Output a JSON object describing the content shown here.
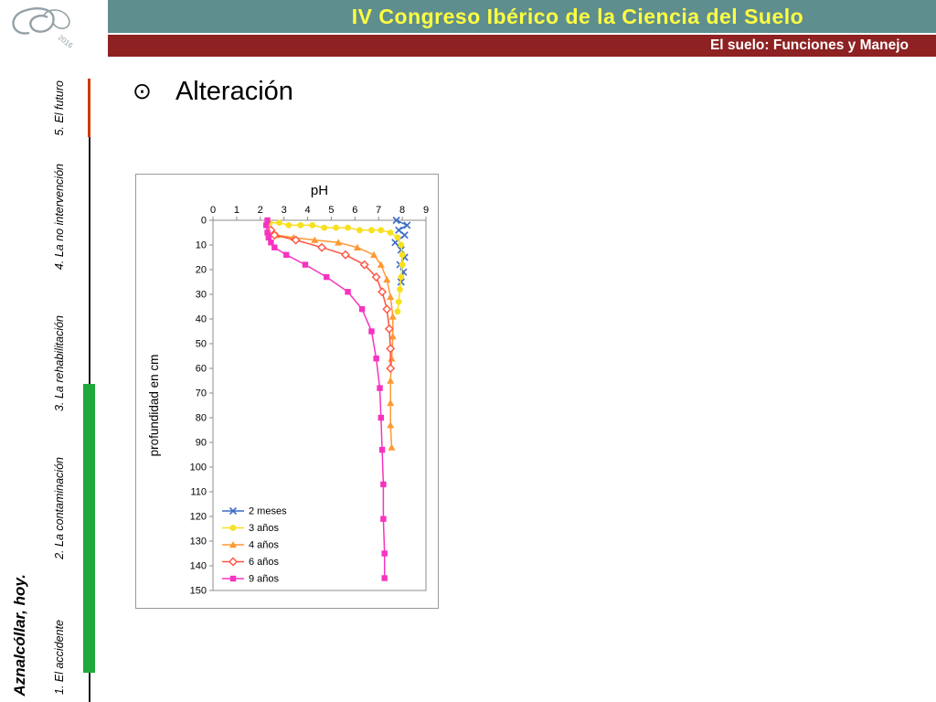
{
  "header": {
    "title": "IV Congreso Ibérico de la Ciencia del Suelo",
    "subtitle": "El suelo: Funciones y Manejo",
    "logo_text": "2016",
    "colors": {
      "title_bar": "#5f8e8e",
      "title_text": "#ffff42",
      "subtitle_bar": "#8e2121",
      "subtitle_text": "#ffffff"
    }
  },
  "sidebar": {
    "title": "Aznalcóllar, hoy.",
    "items": [
      {
        "label": "1. El accidente"
      },
      {
        "label": "2. La contaminación"
      },
      {
        "label": "3. La rehabilitación"
      },
      {
        "label": "4. La no intervención"
      },
      {
        "label": "5. El futuro"
      }
    ],
    "colors": {
      "progress_green": "#1fa83c",
      "accent_red": "#cc3a00"
    }
  },
  "slide": {
    "bullet_symbol": "⊙",
    "bullet_text": "Alteración"
  },
  "chart_data": {
    "type": "line",
    "title": "pH",
    "xlabel": "pH",
    "ylabel": "profundidad en cm",
    "xlim": [
      0,
      9
    ],
    "ylim": [
      0,
      150
    ],
    "x_axis_position": "top",
    "y_axis_inverted": true,
    "grid": false,
    "legend_position": "inside-bottom-left",
    "x_ticks": [
      0,
      1,
      2,
      3,
      4,
      5,
      6,
      7,
      8,
      9
    ],
    "y_ticks": [
      0,
      10,
      20,
      30,
      40,
      50,
      60,
      70,
      80,
      90,
      100,
      110,
      120,
      130,
      140,
      150
    ],
    "series": [
      {
        "name": "2 meses",
        "color": "#3a6cc8",
        "marker": "x",
        "points": [
          [
            7.75,
            0
          ],
          [
            8.2,
            2
          ],
          [
            7.85,
            4
          ],
          [
            8.1,
            6
          ],
          [
            7.7,
            9
          ],
          [
            7.95,
            12
          ],
          [
            8.1,
            15
          ],
          [
            7.9,
            18
          ],
          [
            8.05,
            21
          ],
          [
            7.95,
            25
          ]
        ]
      },
      {
        "name": "3 años",
        "color": "#f7e01e",
        "marker": "circle",
        "points": [
          [
            2.4,
            1
          ],
          [
            2.8,
            1
          ],
          [
            3.2,
            2
          ],
          [
            3.7,
            2
          ],
          [
            4.2,
            2
          ],
          [
            4.7,
            3
          ],
          [
            5.2,
            3
          ],
          [
            5.7,
            3
          ],
          [
            6.2,
            4
          ],
          [
            6.7,
            4
          ],
          [
            7.1,
            4
          ],
          [
            7.5,
            5
          ],
          [
            7.8,
            7
          ],
          [
            7.95,
            10
          ],
          [
            8.0,
            14
          ],
          [
            8.0,
            18
          ],
          [
            7.95,
            23
          ],
          [
            7.9,
            28
          ],
          [
            7.85,
            33
          ],
          [
            7.8,
            37
          ]
        ]
      },
      {
        "name": "4 años",
        "color": "#ff9933",
        "marker": "triangle",
        "points": [
          [
            2.5,
            5
          ],
          [
            2.7,
            6
          ],
          [
            3.4,
            7
          ],
          [
            4.3,
            8
          ],
          [
            5.3,
            9
          ],
          [
            6.1,
            11
          ],
          [
            6.8,
            14
          ],
          [
            7.1,
            18
          ],
          [
            7.35,
            24
          ],
          [
            7.5,
            31
          ],
          [
            7.6,
            39
          ],
          [
            7.6,
            47
          ],
          [
            7.55,
            56
          ],
          [
            7.5,
            65
          ],
          [
            7.5,
            74
          ],
          [
            7.5,
            83
          ],
          [
            7.55,
            92
          ]
        ]
      },
      {
        "name": "6 años",
        "color": "#ff5340",
        "marker": "diamond-open",
        "points": [
          [
            2.45,
            4
          ],
          [
            2.6,
            6
          ],
          [
            3.5,
            8
          ],
          [
            4.6,
            11
          ],
          [
            5.6,
            14
          ],
          [
            6.4,
            18
          ],
          [
            6.9,
            23
          ],
          [
            7.15,
            29
          ],
          [
            7.35,
            36
          ],
          [
            7.45,
            44
          ],
          [
            7.5,
            52
          ],
          [
            7.5,
            60
          ]
        ]
      },
      {
        "name": "9 años",
        "color": "#f733c0",
        "marker": "square",
        "points": [
          [
            2.3,
            0
          ],
          [
            2.25,
            2
          ],
          [
            2.3,
            5
          ],
          [
            2.35,
            7
          ],
          [
            2.45,
            9
          ],
          [
            2.6,
            11
          ],
          [
            3.1,
            14
          ],
          [
            3.9,
            18
          ],
          [
            4.8,
            23
          ],
          [
            5.7,
            29
          ],
          [
            6.3,
            36
          ],
          [
            6.7,
            45
          ],
          [
            6.9,
            56
          ],
          [
            7.05,
            68
          ],
          [
            7.1,
            80
          ],
          [
            7.15,
            93
          ],
          [
            7.2,
            107
          ],
          [
            7.2,
            121
          ],
          [
            7.25,
            135
          ],
          [
            7.25,
            145
          ]
        ]
      }
    ]
  }
}
